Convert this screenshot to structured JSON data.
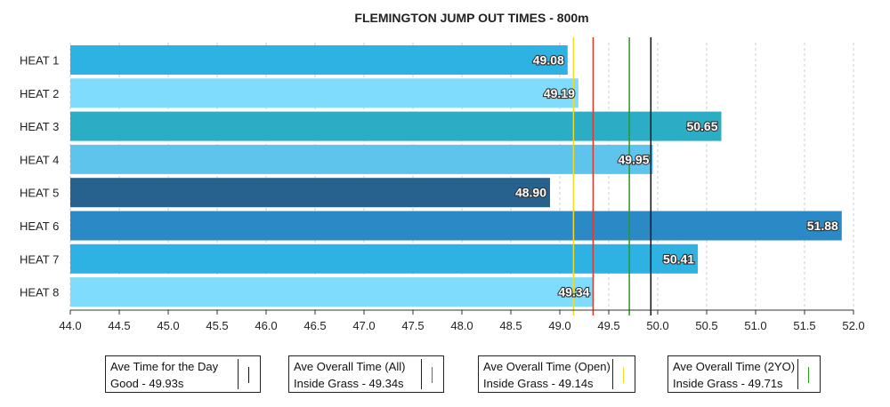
{
  "chart_data": {
    "type": "bar",
    "orientation": "horizontal",
    "title": "FLEMINGTON JUMP OUT TIMES - 800m",
    "categories": [
      "HEAT 1",
      "HEAT 2",
      "HEAT 3",
      "HEAT 4",
      "HEAT 5",
      "HEAT 6",
      "HEAT 7",
      "HEAT 8"
    ],
    "values": [
      49.08,
      49.19,
      50.65,
      49.95,
      48.9,
      51.88,
      50.41,
      49.34
    ],
    "data_labels": [
      "49.08",
      "49.19",
      "50.65",
      "49.95",
      "48.90",
      "51.88",
      "50.41",
      "49.34"
    ],
    "bar_colors": [
      "#2eb2e4",
      "#7fdcfc",
      "#2baec5",
      "#5ec4ec",
      "#27628e",
      "#2b8ac6",
      "#2eb2e4",
      "#7fdcfc"
    ],
    "xlim": [
      44.0,
      52.0
    ],
    "x_ticks": [
      "44.0",
      "44.5",
      "45.0",
      "45.5",
      "46.0",
      "46.5",
      "47.0",
      "47.5",
      "48.0",
      "48.5",
      "49.0",
      "49.5",
      "50.0",
      "50.5",
      "51.0",
      "51.5",
      "52.0"
    ],
    "grid": "vertical dashed",
    "reference_lines": [
      {
        "name": "Ave Time for the Day",
        "value": 49.93,
        "color": "#111111"
      },
      {
        "name": "Ave Overall Time (All)",
        "value": 49.34,
        "color": "#e0382b"
      },
      {
        "name": "Ave Overall Time (Open)",
        "value": 49.14,
        "color": "#f1da22"
      },
      {
        "name": "Ave Overall Time (2YO)",
        "value": 49.71,
        "color": "#2a9a1a"
      }
    ]
  },
  "legend": [
    {
      "line1": "Ave Time for the Day",
      "line2": "Good - 49.93s",
      "color": "#111111"
    },
    {
      "line1": "Ave Overall Time (All)",
      "line2": "Inside Grass - 49.34s",
      "color": "#e0382b"
    },
    {
      "line1": "Ave Overall Time (Open)",
      "line2": "Inside Grass - 49.14s",
      "color": "#f1da22"
    },
    {
      "line1": "Ave Overall Time (2YO)",
      "line2": "Inside Grass - 49.71s",
      "color": "#2a9a1a"
    }
  ]
}
